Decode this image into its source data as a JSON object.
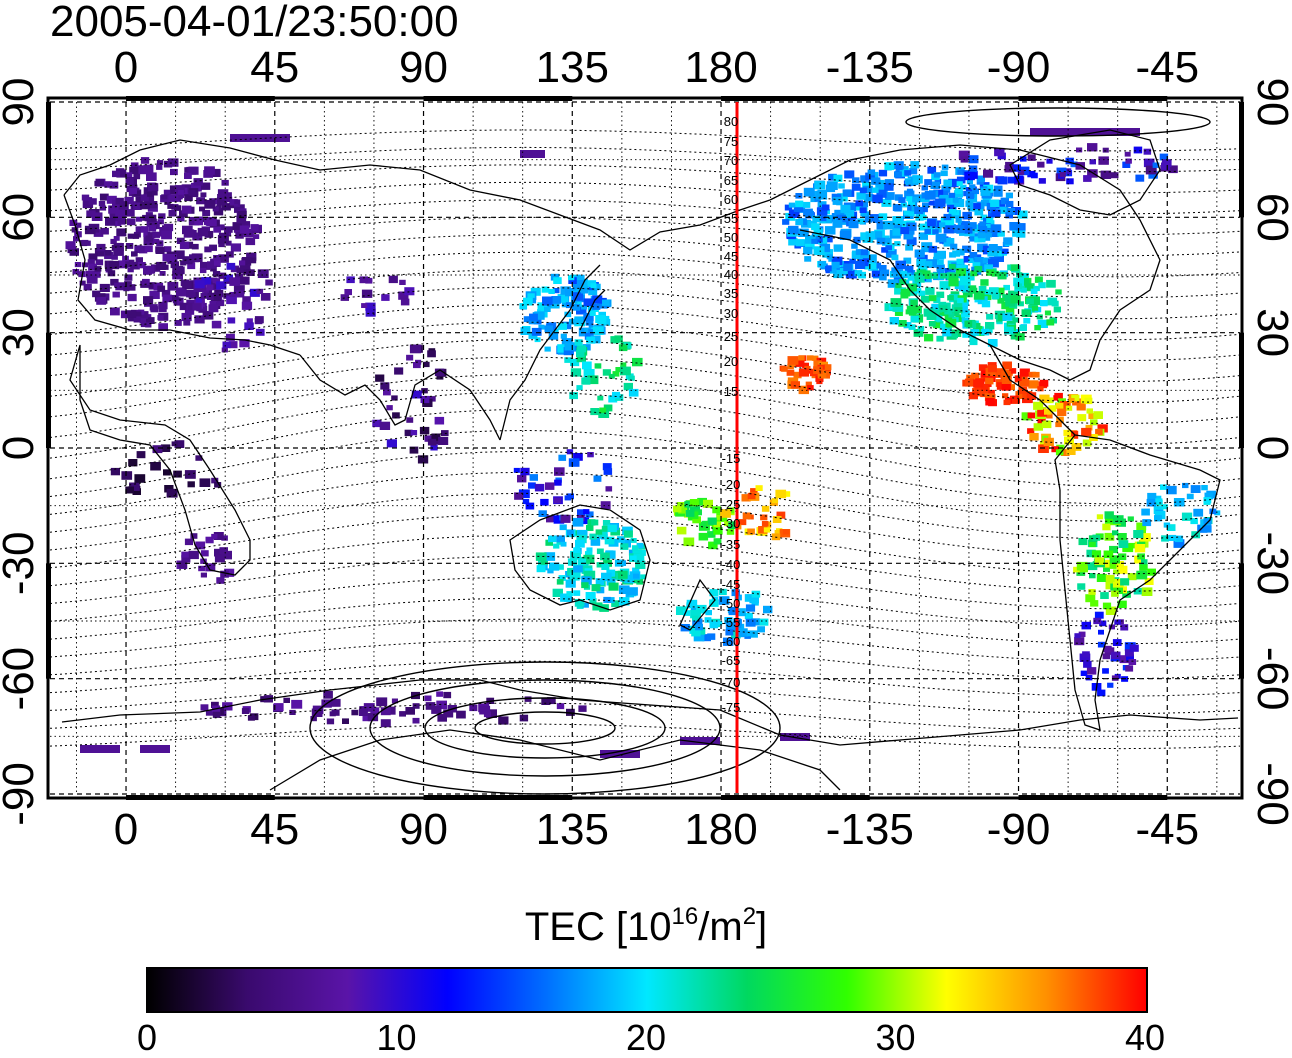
{
  "timestamp": "2005-04-01/23:50:00",
  "top_axis_labels": [
    "0",
    "45",
    "90",
    "135",
    "180",
    "-135",
    "-90",
    "-45"
  ],
  "bottom_axis_labels": [
    "0",
    "45",
    "90",
    "135",
    "180",
    "-135",
    "-90",
    "-45"
  ],
  "left_axis_labels": [
    "90",
    "60",
    "30",
    "0",
    "-30",
    "-60",
    "-90"
  ],
  "right_axis_labels": [
    "90",
    "60",
    "30",
    "0",
    "-30",
    "-60",
    "-90"
  ],
  "maglat_labels": [
    "80",
    "75",
    "70",
    "65",
    "60",
    "55",
    "50",
    "45",
    "40",
    "35",
    "30",
    "25",
    "20",
    "15",
    "-15",
    "-20",
    "-25",
    "-30",
    "-35",
    "-40",
    "-45",
    "-50",
    "-55",
    "-60",
    "-65",
    "-70",
    "-75"
  ],
  "colorbar": {
    "title_prefix": "TEC  [10",
    "title_sup1": "16",
    "title_mid": "/m",
    "title_sup2": "2",
    "title_suffix": "]",
    "tick_labels": [
      "0",
      "10",
      "20",
      "30",
      "40"
    ],
    "colors": [
      "#000000",
      "#3a0a6e",
      "#5a14a8",
      "#0000ff",
      "#0070ff",
      "#00e8ff",
      "#00d860",
      "#30ff00",
      "#ffff00",
      "#ff9000",
      "#ff0000"
    ]
  },
  "meridian_color": "#ff0000"
}
